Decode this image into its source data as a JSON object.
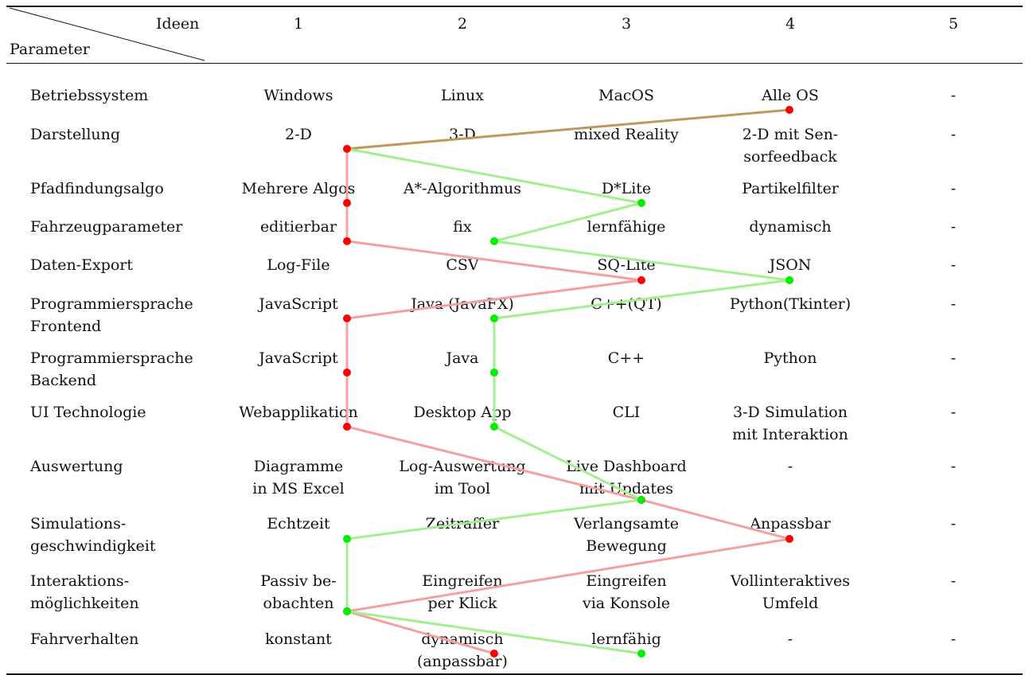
{
  "header": {
    "ideen_label": "Ideen",
    "parameter_label": "Parameter",
    "columns": [
      "1",
      "2",
      "3",
      "4",
      "5"
    ]
  },
  "rows": [
    {
      "parameter": "Betriebssystem",
      "cells": [
        "Windows",
        "Linux",
        "MacOS",
        "Alle OS",
        "-"
      ]
    },
    {
      "parameter": "Darstellung",
      "cells": [
        "2-D",
        "3-D",
        "mixed Reality",
        "2-D mit Sen-\nsorfeedback",
        "-"
      ]
    },
    {
      "parameter": "Pfadfindungsalgo",
      "cells": [
        "Mehrere Algos",
        "A*-Algorithmus",
        "D*Lite",
        "Partikelfilter",
        "-"
      ]
    },
    {
      "parameter": "Fahrzeugparameter",
      "cells": [
        "editierbar",
        "fix",
        "lernfähige",
        "dynamisch",
        "-"
      ]
    },
    {
      "parameter": "Daten-Export",
      "cells": [
        "Log-File",
        "CSV",
        "SQ-Lite",
        "JSON",
        "-"
      ]
    },
    {
      "parameter": "Programmiersprache\nFrontend",
      "cells": [
        "JavaScript",
        "Java (JavaFX)",
        "C++(QT)",
        "Python(Tkinter)",
        "-"
      ]
    },
    {
      "parameter": "Programmiersprache\nBackend",
      "cells": [
        "JavaScript",
        "Java",
        "C++",
        "Python",
        "-"
      ]
    },
    {
      "parameter": "UI Technologie",
      "cells": [
        "Webapplikation",
        "Desktop App",
        "CLI",
        "3-D Simulation\nmit Interaktion",
        "-"
      ]
    },
    {
      "parameter": "Auswertung",
      "cells": [
        "Diagramme\nin MS Excel",
        "Log-Auswertung\nim Tool",
        "Live Dashboard\nmit Updates",
        "-",
        "-"
      ]
    },
    {
      "parameter": "Simulations-\ngeschwindigkeit",
      "cells": [
        "Echtzeit",
        "Zeitraffer",
        "Verlangsamte\nBewegung",
        "Anpassbar",
        "-"
      ]
    },
    {
      "parameter": "Interaktions-\nmöglichkeiten",
      "cells": [
        "Passiv be-\nobachten",
        "Eingreifen\nper Klick",
        "Eingreifen\nvia Konsole",
        "Vollinteraktives\nUmfeld",
        "-"
      ]
    },
    {
      "parameter": "Fahrverhalten",
      "cells": [
        "konstant",
        "dynamisch\n(anpassbar)",
        "lernfähig",
        "-",
        "-"
      ]
    }
  ],
  "paths": [
    {
      "color": "#f4a0a0",
      "dot_color": "#ff0000",
      "choices": [
        4,
        1,
        1,
        1,
        3,
        1,
        1,
        1,
        3,
        4,
        1,
        2
      ]
    },
    {
      "color": "#a0f090",
      "dot_color": "#00ee00",
      "choices": [
        null,
        1,
        3,
        2,
        4,
        2,
        2,
        2,
        3,
        1,
        1,
        3
      ]
    }
  ],
  "shared_segment_color": "#bc9a5e"
}
